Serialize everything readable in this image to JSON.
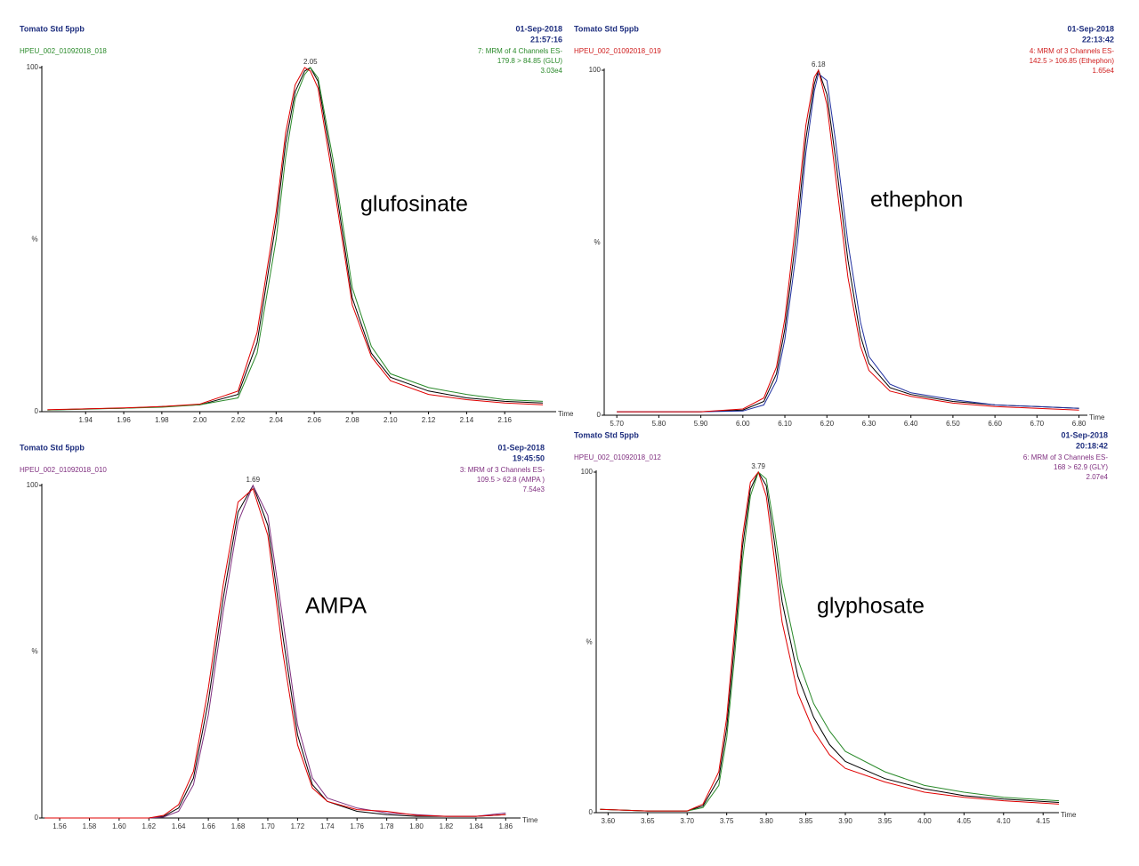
{
  "chart_data": [
    {
      "type": "line",
      "title": "Tomato Std 5ppb",
      "date": "01-Sep-2018",
      "time": "21:57:16",
      "sample": "HPEU_002_01092018_018",
      "channel_info": [
        "7: MRM of 4 Channels ES-",
        "179.8 > 84.85 (GLU)",
        "3.03e4"
      ],
      "info_color": "#2a8a2a",
      "peak_label": "2.05",
      "compound": "glufosinate",
      "xlabel": "Time",
      "ylabel": "%",
      "xlim": [
        1.917,
        2.187
      ],
      "ylim": [
        0,
        100
      ],
      "yticks": [
        0,
        100
      ],
      "xticks": [
        1.94,
        1.96,
        1.98,
        {
          "value": 2,
          "label": "2.00"
        },
        2.02,
        2.04,
        2.06,
        2.08,
        {
          "value": 2.1,
          "label": "2.10"
        },
        2.12,
        2.14,
        2.16
      ],
      "x": [
        1.92,
        1.94,
        1.96,
        1.98,
        2.0,
        2.02,
        2.03,
        2.04,
        2.045,
        2.05,
        2.055,
        2.058,
        2.062,
        2.07,
        2.08,
        2.09,
        2.1,
        2.12,
        2.14,
        2.16,
        2.18
      ],
      "series": [
        {
          "color": "#000000",
          "values": [
            0.5,
            0.8,
            1,
            1.5,
            2,
            5,
            20,
            55,
            78,
            93,
            99,
            100,
            96,
            70,
            33,
            17,
            10,
            6,
            4,
            3,
            2.5
          ]
        },
        {
          "color": "#2a8a2a",
          "values": [
            0.5,
            0.7,
            1,
            1.3,
            2,
            4,
            17,
            50,
            74,
            91,
            98,
            100,
            97,
            73,
            36,
            19,
            11,
            7,
            5,
            3.5,
            3
          ]
        },
        {
          "color": "#e00000",
          "values": [
            0.6,
            0.8,
            1.1,
            1.5,
            2.2,
            6,
            23,
            58,
            81,
            95,
            100,
            99,
            94,
            67,
            31,
            16,
            9,
            5,
            3.5,
            2.5,
            2
          ]
        }
      ]
    },
    {
      "type": "line",
      "title": "Tomato Std 5ppb",
      "date": "01-Sep-2018",
      "time": "22:13:42",
      "sample": "HPEU_002_01092018_019",
      "channel_info": [
        "4: MRM of 3 Channels ES-",
        "142.5 > 106.85 (Ethephon)",
        "1.65e4"
      ],
      "info_color": "#d02020",
      "peak_label": "6.18",
      "compound": "ethephon",
      "xlabel": "Time",
      "ylabel": "%",
      "xlim": [
        5.67,
        6.82
      ],
      "ylim": [
        0,
        100
      ],
      "yticks": [
        0,
        100
      ],
      "xticks": [
        {
          "value": 5.7,
          "label": "5.70"
        },
        {
          "value": 5.8,
          "label": "5.80"
        },
        {
          "value": 5.9,
          "label": "5.90"
        },
        {
          "value": 6,
          "label": "6.00"
        },
        {
          "value": 6.1,
          "label": "6.10"
        },
        {
          "value": 6.2,
          "label": "6.20"
        },
        {
          "value": 6.3,
          "label": "6.30"
        },
        {
          "value": 6.4,
          "label": "6.40"
        },
        {
          "value": 6.5,
          "label": "6.50"
        },
        {
          "value": 6.6,
          "label": "6.60"
        },
        {
          "value": 6.7,
          "label": "6.70"
        },
        {
          "value": 6.8,
          "label": "6.80"
        }
      ],
      "x": [
        5.7,
        5.8,
        5.9,
        6.0,
        6.05,
        6.08,
        6.1,
        6.13,
        6.15,
        6.17,
        6.18,
        6.2,
        6.22,
        6.25,
        6.28,
        6.3,
        6.35,
        6.4,
        6.5,
        6.6,
        6.7,
        6.8
      ],
      "series": [
        {
          "color": "#000000",
          "values": [
            1,
            1,
            1,
            1.5,
            4,
            12,
            25,
            55,
            80,
            96,
            100,
            93,
            75,
            45,
            23,
            15,
            8,
            6,
            4,
            3,
            2.5,
            2
          ]
        },
        {
          "color": "#2030a0",
          "values": [
            1,
            1,
            1,
            1.2,
            3,
            10,
            22,
            50,
            76,
            94,
            99,
            97,
            80,
            50,
            27,
            17,
            9,
            6.5,
            4.5,
            3,
            2.5,
            2
          ]
        },
        {
          "color": "#e00000",
          "values": [
            1,
            1,
            1,
            1.8,
            5,
            14,
            28,
            60,
            84,
            98,
            100,
            90,
            70,
            40,
            20,
            13,
            7,
            5.5,
            3.5,
            2.5,
            2,
            1.5
          ]
        }
      ]
    },
    {
      "type": "line",
      "title": "Tomato Std 5ppb",
      "date": "01-Sep-2018",
      "time": "19:45:50",
      "sample": "HPEU_002_01092018_010",
      "channel_info": [
        "3: MRM of 3 Channels ES-",
        "109.5 > 62.8 (AMPA )",
        "7.54e3"
      ],
      "info_color": "#803080",
      "peak_label": "1.69",
      "compound": "AMPA",
      "xlabel": "Time",
      "ylabel": "%",
      "xlim": [
        1.548,
        1.87
      ],
      "ylim": [
        0,
        100
      ],
      "yticks": [
        0,
        100
      ],
      "xticks": [
        1.56,
        1.58,
        {
          "value": 1.6,
          "label": "1.60"
        },
        1.62,
        1.64,
        1.66,
        1.68,
        {
          "value": 1.7,
          "label": "1.70"
        },
        1.72,
        1.74,
        1.76,
        1.78,
        {
          "value": 1.8,
          "label": "1.80"
        },
        1.82,
        1.84,
        1.86
      ],
      "x": [
        1.55,
        1.58,
        1.6,
        1.62,
        1.63,
        1.64,
        1.65,
        1.66,
        1.67,
        1.68,
        1.69,
        1.7,
        1.71,
        1.72,
        1.73,
        1.74,
        1.76,
        1.78,
        1.8,
        1.82,
        1.84,
        1.86
      ],
      "series": [
        {
          "color": "#000000",
          "values": [
            0,
            0,
            0,
            0,
            0.5,
            3,
            12,
            35,
            66,
            92,
            100,
            88,
            55,
            25,
            10,
            5,
            2,
            1,
            0.5,
            0.5,
            0.5,
            1
          ]
        },
        {
          "color": "#803080",
          "values": [
            0,
            0,
            0,
            0,
            0.3,
            2,
            10,
            31,
            62,
            89,
            100,
            91,
            60,
            28,
            12,
            6,
            3,
            1.5,
            1,
            0.5,
            0.5,
            1.5
          ]
        },
        {
          "color": "#e00000",
          "values": [
            0,
            0,
            0,
            0,
            0.8,
            4,
            14,
            39,
            70,
            95,
            99,
            85,
            50,
            22,
            9,
            5,
            2.5,
            2,
            0.8,
            0.5,
            0.5,
            1
          ]
        }
      ]
    },
    {
      "type": "line",
      "title": "Tomato Std 5ppb",
      "date": "01-Sep-2018",
      "time": "20:18:42",
      "sample": "HPEU_002_01092018_012",
      "channel_info": [
        "6: MRM of 3 Channels ES-",
        "168 > 62.9 (GLY)",
        "2.07e4"
      ],
      "info_color": "#803080",
      "peak_label": "3.79",
      "compound": "glyphosate",
      "xlabel": "Time",
      "ylabel": "%",
      "xlim": [
        3.585,
        4.17
      ],
      "ylim": [
        0,
        100
      ],
      "yticks": [
        0,
        100
      ],
      "xticks": [
        {
          "value": 3.6,
          "label": "3.60"
        },
        3.65,
        {
          "value": 3.7,
          "label": "3.70"
        },
        3.75,
        {
          "value": 3.8,
          "label": "3.80"
        },
        3.85,
        {
          "value": 3.9,
          "label": "3.90"
        },
        3.95,
        {
          "value": 4,
          "label": "4.00"
        },
        4.05,
        {
          "value": 4.1,
          "label": "4.10"
        },
        4.15
      ],
      "x": [
        3.59,
        3.65,
        3.7,
        3.72,
        3.74,
        3.75,
        3.76,
        3.77,
        3.78,
        3.79,
        3.8,
        3.81,
        3.82,
        3.84,
        3.86,
        3.88,
        3.9,
        3.95,
        4.0,
        4.05,
        4.1,
        4.17
      ],
      "series": [
        {
          "color": "#000000",
          "values": [
            1,
            0.5,
            0.5,
            2,
            10,
            25,
            50,
            78,
            95,
            100,
            96,
            80,
            62,
            40,
            28,
            20,
            15,
            10,
            7,
            5,
            4,
            3
          ]
        },
        {
          "color": "#2a8a2a",
          "values": [
            1,
            0.5,
            0.5,
            1.5,
            8,
            22,
            46,
            74,
            93,
            100,
            98,
            84,
            67,
            45,
            32,
            24,
            18,
            12,
            8,
            6,
            4.5,
            3.5
          ]
        },
        {
          "color": "#e00000",
          "values": [
            1,
            0.5,
            0.5,
            2.5,
            12,
            28,
            54,
            81,
            97,
            100,
            93,
            75,
            56,
            35,
            24,
            17,
            13,
            9,
            6,
            4.5,
            3.5,
            2.5
          ]
        }
      ]
    }
  ]
}
